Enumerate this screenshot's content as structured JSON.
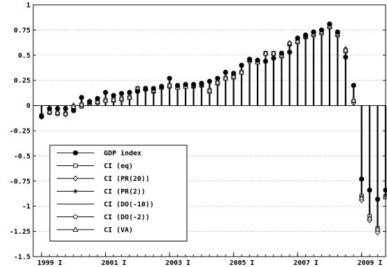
{
  "chart_data": {
    "type": "stem",
    "title": "",
    "xlabel": "",
    "ylabel": "",
    "ylim": [
      -1.5,
      1
    ],
    "y_ticks": [
      "1",
      "0.75",
      "0.5",
      "0.25",
      "0",
      "-0.25",
      "-0.5",
      "-0.75",
      "-1",
      "-1.25",
      "-1.5"
    ],
    "x_ticks": [
      "1999 I",
      "2001 I",
      "2003 I",
      "2005 I",
      "2007 I",
      "2009 I"
    ],
    "x_tick_quarter_index": [
      0,
      8,
      16,
      24,
      32,
      40
    ],
    "quarters": 44,
    "grid": "horizontal dotted",
    "legend_position": "bottom-left",
    "series": [
      {
        "name": "GDP index",
        "marker": "filled-circle",
        "values": [
          -0.11,
          -0.03,
          -0.03,
          -0.03,
          -0.05,
          0.08,
          0.04,
          0.07,
          0.13,
          0.1,
          0.12,
          0.13,
          0.14,
          0.16,
          0.17,
          0.19,
          0.27,
          0.2,
          0.21,
          0.21,
          0.22,
          0.24,
          0.27,
          0.33,
          0.32,
          0.4,
          0.46,
          0.45,
          0.44,
          0.47,
          0.52,
          0.53,
          0.67,
          0.7,
          0.73,
          0.75,
          0.81,
          0.73,
          0.48,
          0.2,
          -0.73,
          -0.84,
          -0.93,
          -0.84
        ]
      },
      {
        "name": "CI  (eq)",
        "marker": "open-square",
        "values": [
          -0.1,
          -0.07,
          -0.08,
          -0.08,
          -0.02,
          -0.01,
          0.02,
          0.03,
          0.05,
          0.05,
          0.06,
          0.08,
          0.17,
          0.17,
          0.14,
          0.18,
          0.19,
          0.18,
          0.19,
          0.19,
          0.2,
          0.14,
          0.22,
          0.27,
          0.28,
          0.33,
          0.45,
          0.43,
          0.52,
          0.52,
          0.49,
          0.61,
          0.63,
          0.68,
          0.7,
          0.72,
          0.78,
          0.7,
          0.54,
          0.04,
          -0.9,
          -1.1,
          -1.22,
          -0.9
        ]
      },
      {
        "name": "CI  (PR(20))",
        "marker": "open-diamond",
        "values": [
          -0.11,
          -0.07,
          -0.08,
          -0.09,
          0.0,
          0.02,
          0.04,
          0.05,
          0.06,
          0.07,
          0.08,
          0.09,
          0.16,
          0.17,
          0.15,
          0.18,
          0.21,
          0.19,
          0.19,
          0.2,
          0.21,
          0.16,
          0.24,
          0.28,
          0.3,
          0.34,
          0.44,
          0.44,
          0.51,
          0.51,
          0.51,
          0.62,
          0.65,
          0.69,
          0.72,
          0.74,
          0.8,
          0.72,
          0.56,
          0.05,
          -0.94,
          -1.14,
          -1.26,
          -0.9
        ]
      },
      {
        "name": "CI  (PR(2))",
        "marker": "star",
        "values": [
          -0.1,
          -0.06,
          -0.07,
          -0.08,
          -0.01,
          0.01,
          0.03,
          0.04,
          0.05,
          0.06,
          0.07,
          0.08,
          0.16,
          0.17,
          0.15,
          0.18,
          0.2,
          0.18,
          0.19,
          0.2,
          0.21,
          0.15,
          0.23,
          0.27,
          0.29,
          0.33,
          0.44,
          0.43,
          0.51,
          0.51,
          0.5,
          0.61,
          0.64,
          0.68,
          0.71,
          0.73,
          0.79,
          0.71,
          0.55,
          0.04,
          -0.91,
          -1.12,
          -1.24,
          -0.91
        ]
      },
      {
        "name": "CI  (DO(-10))",
        "marker": "none",
        "values": [
          -0.09,
          -0.06,
          -0.06,
          -0.07,
          -0.01,
          0.0,
          0.02,
          0.03,
          0.04,
          0.05,
          0.06,
          0.07,
          0.15,
          0.16,
          0.14,
          0.17,
          0.19,
          0.17,
          0.18,
          0.19,
          0.2,
          0.14,
          0.22,
          0.26,
          0.28,
          0.32,
          0.43,
          0.42,
          0.5,
          0.5,
          0.49,
          0.6,
          0.63,
          0.67,
          0.7,
          0.72,
          0.78,
          0.7,
          0.53,
          0.03,
          -0.89,
          -1.09,
          -1.2,
          -0.89
        ]
      },
      {
        "name": "CI  (DO(-2))",
        "marker": "open-circle",
        "values": [
          -0.1,
          -0.07,
          -0.07,
          -0.08,
          -0.02,
          0.0,
          0.02,
          0.03,
          0.05,
          0.05,
          0.06,
          0.08,
          0.16,
          0.16,
          0.14,
          0.18,
          0.19,
          0.18,
          0.19,
          0.19,
          0.2,
          0.14,
          0.22,
          0.27,
          0.28,
          0.33,
          0.44,
          0.43,
          0.52,
          0.51,
          0.49,
          0.61,
          0.63,
          0.68,
          0.7,
          0.72,
          0.78,
          0.7,
          0.54,
          0.03,
          -0.9,
          -1.1,
          -1.22,
          -0.9
        ]
      },
      {
        "name": "CI  (VA)",
        "marker": "open-triangle",
        "values": [
          -0.1,
          -0.06,
          -0.07,
          -0.08,
          -0.01,
          0.01,
          0.03,
          0.04,
          0.05,
          0.06,
          0.07,
          0.08,
          0.17,
          0.17,
          0.15,
          0.18,
          0.2,
          0.18,
          0.19,
          0.2,
          0.21,
          0.15,
          0.23,
          0.27,
          0.29,
          0.33,
          0.45,
          0.43,
          0.52,
          0.52,
          0.5,
          0.62,
          0.64,
          0.69,
          0.71,
          0.73,
          0.79,
          0.71,
          0.55,
          0.05,
          -0.92,
          -1.12,
          -1.23,
          -0.91
        ]
      }
    ]
  }
}
